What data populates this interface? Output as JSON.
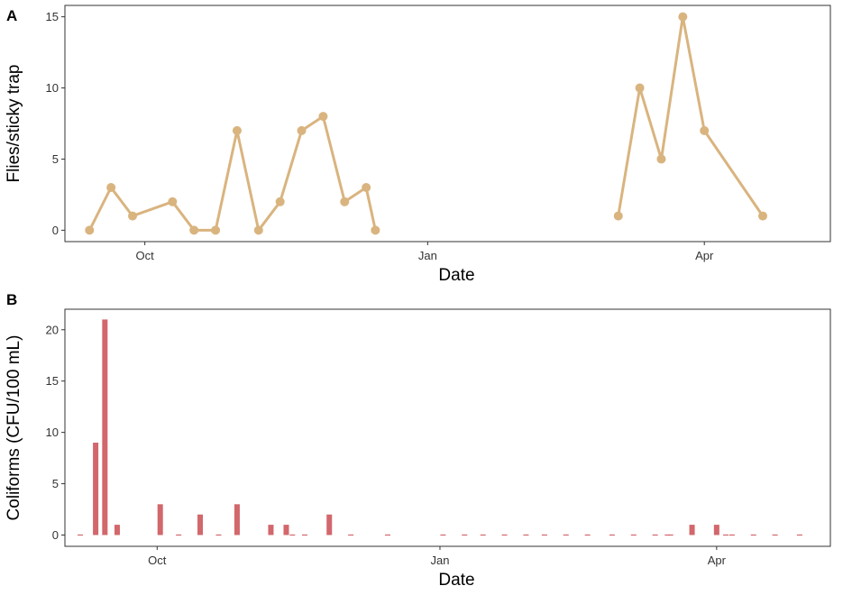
{
  "chart_data": [
    {
      "panel": "A",
      "type": "line",
      "xlabel": "Date",
      "ylabel": "Flies/sticky trap",
      "xlim": [
        "2021-09-05",
        "2022-05-12"
      ],
      "ylim": [
        -0.8,
        15.8
      ],
      "yticks": [
        0,
        5,
        10,
        15
      ],
      "xticks": [
        {
          "date": "2021-10-01",
          "label": "Oct"
        },
        {
          "date": "2022-01-01",
          "label": "Jan"
        },
        {
          "date": "2022-04-01",
          "label": "Apr"
        }
      ],
      "grid": false,
      "color": "#D9B47F",
      "segments": [
        [
          {
            "x": "2021-09-13",
            "y": 0
          },
          {
            "x": "2021-09-20",
            "y": 3
          },
          {
            "x": "2021-09-27",
            "y": 1
          },
          {
            "x": "2021-10-10",
            "y": 2
          },
          {
            "x": "2021-10-17",
            "y": 0
          },
          {
            "x": "2021-10-24",
            "y": 0
          },
          {
            "x": "2021-10-31",
            "y": 7
          },
          {
            "x": "2021-11-07",
            "y": 0
          },
          {
            "x": "2021-11-14",
            "y": 2
          },
          {
            "x": "2021-11-21",
            "y": 7
          },
          {
            "x": "2021-11-28",
            "y": 8
          },
          {
            "x": "2021-12-05",
            "y": 2
          },
          {
            "x": "2021-12-12",
            "y": 3
          },
          {
            "x": "2021-12-15",
            "y": 0
          }
        ],
        [
          {
            "x": "2022-03-04",
            "y": 1
          },
          {
            "x": "2022-03-11",
            "y": 10
          },
          {
            "x": "2022-03-18",
            "y": 5
          },
          {
            "x": "2022-03-25",
            "y": 15
          },
          {
            "x": "2022-04-01",
            "y": 7
          },
          {
            "x": "2022-04-20",
            "y": 1
          }
        ]
      ]
    },
    {
      "panel": "B",
      "type": "bar",
      "xlabel": "Date",
      "ylabel": "Coliforms (CFU/100 mL)",
      "xlim": [
        "2021-09-01",
        "2022-05-08"
      ],
      "ylim": [
        -1.1,
        22.0
      ],
      "yticks": [
        0,
        5,
        10,
        15,
        20
      ],
      "xticks": [
        {
          "date": "2021-10-01",
          "label": "Oct"
        },
        {
          "date": "2022-01-01",
          "label": "Jan"
        },
        {
          "date": "2022-04-01",
          "label": "Apr"
        }
      ],
      "grid": false,
      "color": "#D2676C",
      "bars": [
        {
          "x": "2021-09-06",
          "y": 0
        },
        {
          "x": "2021-09-11",
          "y": 9
        },
        {
          "x": "2021-09-14",
          "y": 21
        },
        {
          "x": "2021-09-18",
          "y": 1
        },
        {
          "x": "2021-10-02",
          "y": 3
        },
        {
          "x": "2021-10-08",
          "y": 0
        },
        {
          "x": "2021-10-15",
          "y": 2
        },
        {
          "x": "2021-10-21",
          "y": 0
        },
        {
          "x": "2021-10-27",
          "y": 3
        },
        {
          "x": "2021-11-07",
          "y": 1
        },
        {
          "x": "2021-11-12",
          "y": 1
        },
        {
          "x": "2021-11-14",
          "y": 0
        },
        {
          "x": "2021-11-18",
          "y": 0
        },
        {
          "x": "2021-11-26",
          "y": 2
        },
        {
          "x": "2021-12-03",
          "y": 0
        },
        {
          "x": "2021-12-15",
          "y": 0
        },
        {
          "x": "2022-01-02",
          "y": 0
        },
        {
          "x": "2022-01-09",
          "y": 0
        },
        {
          "x": "2022-01-15",
          "y": 0
        },
        {
          "x": "2022-01-22",
          "y": 0
        },
        {
          "x": "2022-01-29",
          "y": 0
        },
        {
          "x": "2022-02-04",
          "y": 0
        },
        {
          "x": "2022-02-11",
          "y": 0
        },
        {
          "x": "2022-02-18",
          "y": 0
        },
        {
          "x": "2022-02-26",
          "y": 0
        },
        {
          "x": "2022-03-05",
          "y": 0
        },
        {
          "x": "2022-03-12",
          "y": 0
        },
        {
          "x": "2022-03-16",
          "y": 0
        },
        {
          "x": "2022-03-17",
          "y": 0
        },
        {
          "x": "2022-03-24",
          "y": 1
        },
        {
          "x": "2022-04-01",
          "y": 1
        },
        {
          "x": "2022-04-04",
          "y": 0
        },
        {
          "x": "2022-04-06",
          "y": 0
        },
        {
          "x": "2022-04-13",
          "y": 0
        },
        {
          "x": "2022-04-20",
          "y": 0
        },
        {
          "x": "2022-04-28",
          "y": 0
        }
      ]
    }
  ]
}
